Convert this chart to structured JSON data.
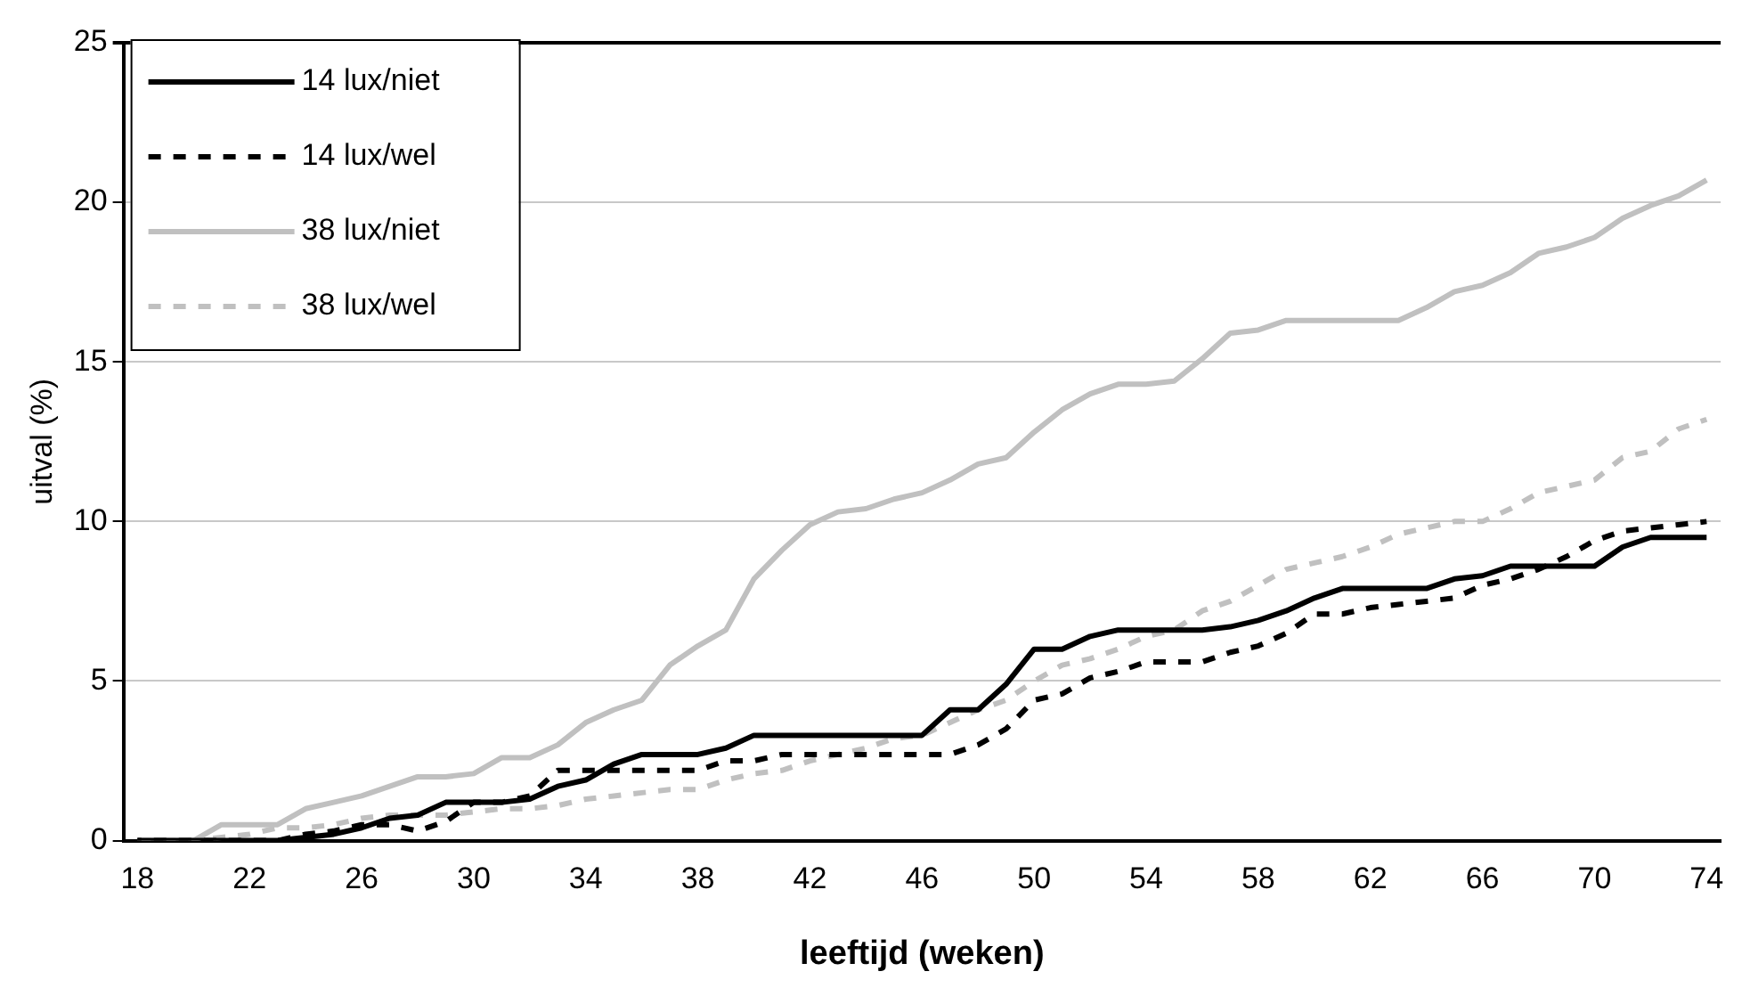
{
  "chart_data": {
    "type": "line",
    "xlabel": "leeftijd (weken)",
    "ylabel": "uitval (%)",
    "categories": [
      "18",
      null,
      null,
      null,
      "22",
      null,
      null,
      null,
      "26",
      null,
      null,
      null,
      "30",
      null,
      null,
      null,
      "34",
      null,
      null,
      null,
      "38",
      null,
      null,
      null,
      "42",
      null,
      null,
      null,
      "46",
      null,
      null,
      null,
      "50",
      null,
      null,
      null,
      "54",
      null,
      null,
      null,
      "58",
      null,
      null,
      null,
      "62",
      null,
      null,
      null,
      "66",
      null,
      null,
      null,
      "70",
      null,
      null,
      null,
      "74"
    ],
    "ylim": [
      0,
      25
    ],
    "yticks": [
      0,
      5,
      10,
      15,
      20,
      25
    ],
    "grid": "y",
    "legend": "top left",
    "marker": "none",
    "series": [
      {
        "name": "14 lux/niet",
        "color": "#000000",
        "line_style": "solid",
        "values": [
          0,
          0,
          0,
          0,
          0,
          0,
          0.1,
          0.2,
          0.4,
          0.7,
          0.8,
          1.2,
          1.2,
          1.2,
          1.3,
          1.7,
          1.9,
          2.4,
          2.7,
          2.7,
          2.7,
          2.9,
          3.3,
          3.3,
          3.3,
          3.3,
          3.3,
          3.3,
          3.3,
          4.1,
          4.1,
          4.9,
          6.0,
          6.0,
          6.4,
          6.6,
          6.6,
          6.6,
          6.6,
          6.7,
          6.9,
          7.2,
          7.6,
          7.9,
          7.9,
          7.9,
          7.9,
          8.2,
          8.3,
          8.6,
          8.6,
          8.6,
          8.6,
          9.2,
          9.5,
          9.5,
          9.5
        ]
      },
      {
        "name": "14 lux/wel",
        "color": "#000000",
        "line_style": "dashed",
        "values": [
          0,
          0,
          0,
          0,
          0,
          0,
          0.2,
          0.3,
          0.5,
          0.5,
          0.3,
          0.6,
          1.2,
          1.2,
          1.4,
          2.2,
          2.2,
          2.2,
          2.2,
          2.2,
          2.2,
          2.5,
          2.5,
          2.7,
          2.7,
          2.7,
          2.7,
          2.7,
          2.7,
          2.7,
          3.0,
          3.5,
          4.4,
          4.6,
          5.1,
          5.3,
          5.6,
          5.6,
          5.6,
          5.9,
          6.1,
          6.5,
          7.1,
          7.1,
          7.3,
          7.4,
          7.5,
          7.6,
          8.0,
          8.2,
          8.5,
          8.9,
          9.4,
          9.7,
          9.8,
          9.9,
          10.0
        ]
      },
      {
        "name": "38 lux/niet",
        "color": "#c0c0c0",
        "line_style": "solid",
        "values": [
          0,
          0,
          0,
          0.5,
          0.5,
          0.5,
          1.0,
          1.2,
          1.4,
          1.7,
          2.0,
          2.0,
          2.1,
          2.6,
          2.6,
          3.0,
          3.7,
          4.1,
          4.4,
          5.5,
          6.1,
          6.6,
          8.2,
          9.1,
          9.9,
          10.3,
          10.4,
          10.7,
          10.9,
          11.3,
          11.8,
          12.0,
          12.8,
          13.5,
          14.0,
          14.3,
          14.3,
          14.4,
          15.1,
          15.9,
          16.0,
          16.3,
          16.3,
          16.3,
          16.3,
          16.3,
          16.7,
          17.2,
          17.4,
          17.8,
          18.4,
          18.6,
          18.9,
          19.5,
          19.9,
          20.2,
          20.7
        ]
      },
      {
        "name": "38 lux/wel",
        "color": "#c0c0c0",
        "line_style": "dashed",
        "values": [
          0,
          0,
          0,
          0.1,
          0.2,
          0.4,
          0.4,
          0.5,
          0.7,
          0.8,
          0.8,
          0.8,
          0.9,
          1.0,
          1.0,
          1.1,
          1.3,
          1.4,
          1.5,
          1.6,
          1.6,
          1.9,
          2.1,
          2.2,
          2.5,
          2.7,
          2.9,
          3.2,
          3.3,
          3.7,
          4.1,
          4.4,
          5.0,
          5.5,
          5.7,
          6.0,
          6.4,
          6.6,
          7.2,
          7.5,
          8.0,
          8.5,
          8.7,
          8.9,
          9.2,
          9.6,
          9.8,
          10.0,
          10.0,
          10.4,
          10.9,
          11.1,
          11.3,
          12.0,
          12.2,
          12.9,
          13.2
        ]
      }
    ]
  }
}
